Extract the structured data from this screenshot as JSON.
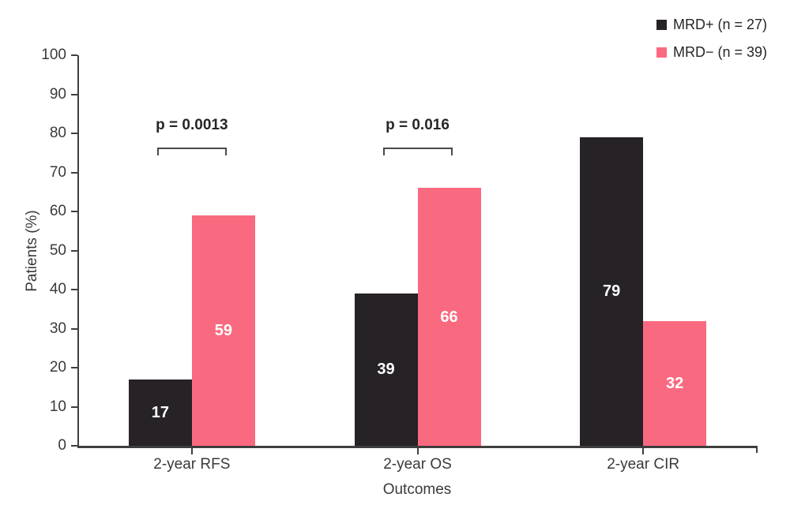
{
  "chart_data": {
    "type": "bar",
    "title": "",
    "xlabel": "Outcomes",
    "ylabel": "Patients (%)",
    "ylim": [
      0,
      100
    ],
    "ytick_step": 10,
    "grid": false,
    "legend_position": "top-right",
    "categories": [
      "2-year RFS",
      "2-year OS",
      "2-year CIR"
    ],
    "series": [
      {
        "name": "MRD+",
        "legend_label": "MRD+ (n = 27)",
        "color": "#262226",
        "values": [
          17,
          39,
          79
        ]
      },
      {
        "name": "MRD-",
        "legend_label": "MRD− (n = 39)",
        "color": "#F96A80",
        "values": [
          59,
          66,
          32
        ]
      }
    ],
    "value_label_color": "#ffffff",
    "annotations": [
      {
        "category": "2-year RFS",
        "label": "p = 0.0013"
      },
      {
        "category": "2-year OS",
        "label": "p = 0.016"
      }
    ]
  }
}
